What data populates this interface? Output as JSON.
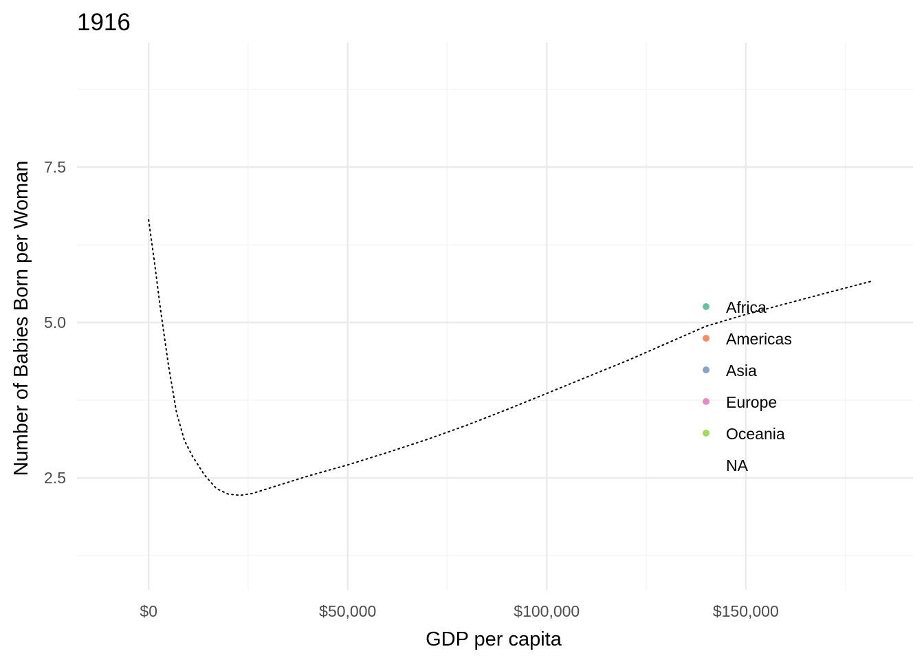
{
  "chart_data": {
    "type": "line",
    "title": "1916",
    "xlabel": "GDP per capita",
    "ylabel": "Number of Babies Born per Woman",
    "xlim": [
      -18000,
      192000
    ],
    "ylim": [
      0.7,
      9.5
    ],
    "x_ticks": [
      {
        "value": 0,
        "label": "$0"
      },
      {
        "value": 50000,
        "label": "$50,000"
      },
      {
        "value": 100000,
        "label": "$100,000"
      },
      {
        "value": 150000,
        "label": "$150,000"
      }
    ],
    "x_minor": [
      25000,
      75000,
      125000,
      175000
    ],
    "y_ticks": [
      {
        "value": 2.5,
        "label": "2.5"
      },
      {
        "value": 5,
        "label": "5.0"
      },
      {
        "value": 7.5,
        "label": "7.5"
      }
    ],
    "y_minor": [
      1.25,
      3.75,
      6.25,
      8.75
    ],
    "grid": true,
    "series": [
      {
        "style": "dotted",
        "color": "#000000",
        "x": [
          0,
          1500,
          3000,
          5000,
          7000,
          9000,
          11000,
          14000,
          17000,
          20000,
          23000,
          26000,
          30000,
          35000,
          40000,
          45000,
          50000,
          60000,
          70000,
          80000,
          90000,
          100000,
          110000,
          120000,
          130000,
          140000,
          150000,
          160000,
          170000,
          182000
        ],
        "y": [
          6.65,
          5.95,
          5.2,
          4.3,
          3.55,
          3.1,
          2.85,
          2.55,
          2.33,
          2.24,
          2.22,
          2.25,
          2.33,
          2.43,
          2.53,
          2.62,
          2.71,
          2.91,
          3.12,
          3.35,
          3.6,
          3.86,
          4.12,
          4.38,
          4.66,
          4.94,
          5.13,
          5.3,
          5.47,
          5.67
        ]
      }
    ],
    "legend": {
      "placement": "right",
      "entries": [
        {
          "label": "Africa",
          "color": "#66c2a5"
        },
        {
          "label": "Americas",
          "color": "#fc8d62"
        },
        {
          "label": "Asia",
          "color": "#8da0cb"
        },
        {
          "label": "Europe",
          "color": "#e78ac3"
        },
        {
          "label": "Oceania",
          "color": "#a6d854"
        },
        {
          "label": "NA",
          "color": ""
        }
      ]
    }
  }
}
